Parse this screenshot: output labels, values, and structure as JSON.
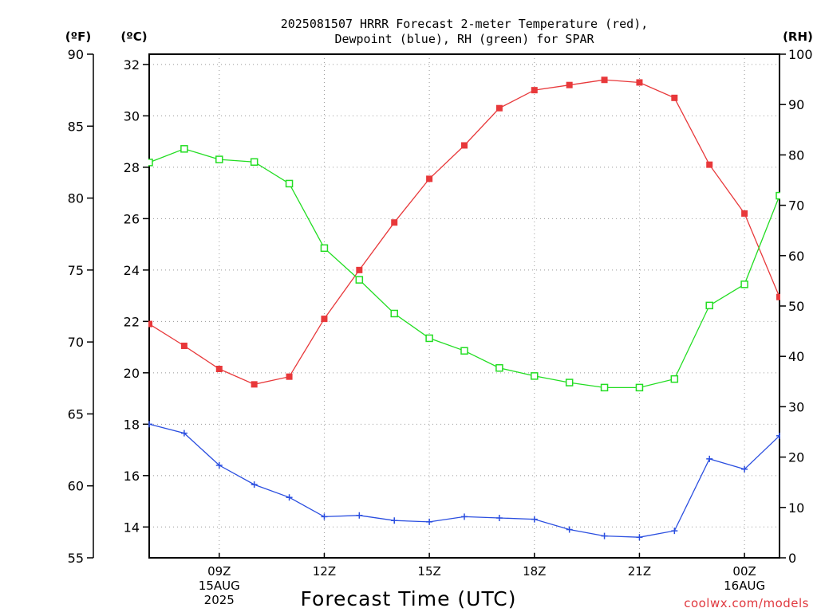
{
  "chart_data": {
    "type": "line",
    "title_lines": [
      "2025081507 HRRR Forecast 2-meter Temperature (red),",
      "Dewpoint (blue), RH (green) for SPAR"
    ],
    "xlabel": "Forecast Time (UTC)",
    "credit": "coolwx.com/models",
    "units": {
      "f": "(ºF)",
      "c": "(ºC)",
      "rh": "(RH)"
    },
    "x": [
      "07Z",
      "08Z",
      "09Z",
      "10Z",
      "11Z",
      "12Z",
      "13Z",
      "14Z",
      "15Z",
      "16Z",
      "17Z",
      "18Z",
      "19Z",
      "20Z",
      "21Z",
      "22Z",
      "23Z",
      "00Z",
      "01Z"
    ],
    "x_ticks": [
      {
        "index": 2,
        "lines": [
          "09Z",
          "15AUG",
          "2025"
        ]
      },
      {
        "index": 5,
        "lines": [
          "12Z"
        ]
      },
      {
        "index": 8,
        "lines": [
          "15Z"
        ]
      },
      {
        "index": 11,
        "lines": [
          "18Z"
        ]
      },
      {
        "index": 14,
        "lines": [
          "21Z"
        ]
      },
      {
        "index": 17,
        "lines": [
          "00Z",
          "16AUG"
        ]
      }
    ],
    "ylim_c": [
      12.8,
      32.4
    ],
    "yticks_c": [
      14,
      16,
      18,
      20,
      22,
      24,
      26,
      28,
      30,
      32
    ],
    "ylim_f": [
      55,
      90
    ],
    "yticks_f": [
      55,
      60,
      65,
      70,
      75,
      80,
      85,
      90
    ],
    "ylim_rh": [
      0,
      100
    ],
    "yticks_rh": [
      0,
      10,
      20,
      30,
      40,
      50,
      60,
      70,
      80,
      90,
      100
    ],
    "grid": true,
    "series": [
      {
        "name": "Temperature",
        "axis": "c",
        "color": "#e8383a",
        "marker": "filled-square",
        "values": [
          21.9,
          21.05,
          20.15,
          19.55,
          19.85,
          22.1,
          24.0,
          25.85,
          27.55,
          28.85,
          30.3,
          31.0,
          31.2,
          31.4,
          31.3,
          30.7,
          28.1,
          26.2,
          22.95
        ]
      },
      {
        "name": "Dewpoint",
        "axis": "c",
        "color": "#2a4ee0",
        "marker": "plus",
        "values": [
          18.0,
          17.65,
          16.4,
          15.65,
          15.15,
          14.4,
          14.45,
          14.25,
          14.2,
          14.4,
          14.35,
          14.3,
          13.9,
          13.65,
          13.6,
          13.85,
          16.65,
          16.25,
          17.55
        ]
      },
      {
        "name": "RH",
        "axis": "rh",
        "color": "#22dd22",
        "marker": "open-square",
        "values": [
          78.5,
          81.2,
          79.1,
          78.6,
          74.3,
          61.5,
          55.2,
          48.5,
          43.6,
          41.1,
          37.7,
          36.1,
          34.8,
          33.8,
          33.8,
          35.5,
          50.1,
          54.3,
          71.9
        ]
      }
    ]
  }
}
